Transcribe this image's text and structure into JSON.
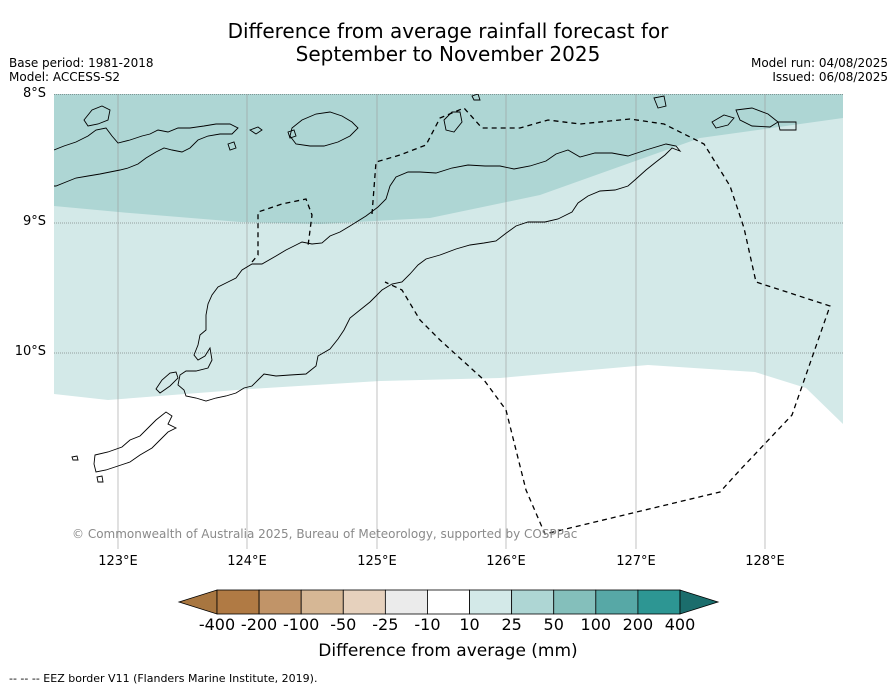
{
  "title": {
    "line1": "Difference from average rainfall forecast for",
    "line2": "September to November 2025"
  },
  "meta_left": {
    "base_period": "Base period: 1981-2018",
    "model": "Model: ACCESS-S2"
  },
  "meta_right": {
    "model_run": "Model run: 04/08/2025",
    "issued": "Issued: 06/08/2025"
  },
  "map": {
    "lat_labels": [
      "8°S",
      "9°S",
      "10°S"
    ],
    "lon_labels": [
      "123°E",
      "124°E",
      "125°E",
      "126°E",
      "127°E",
      "128°E"
    ],
    "copyright": "© Commonwealth of Australia 2025, Bureau of Meteorology, supported by COSPPac",
    "background_color": "#ffffff",
    "zone_colors": {
      "10_to_25": "#d3e9e8",
      "25_to_50": "#aed6d4"
    }
  },
  "colorbar": {
    "ticks": [
      "-400",
      "-200",
      "-100",
      "-50",
      "-25",
      "-10",
      "10",
      "25",
      "50",
      "100",
      "200",
      "400"
    ],
    "colors": [
      "#a87640",
      "#b07a44",
      "#c19468",
      "#d6b795",
      "#e6d1bd",
      "#ebebeb",
      "#ffffff",
      "#d3e9e8",
      "#aed6d4",
      "#84bfbb",
      "#57a8a6",
      "#2d9693",
      "#1b6d6c"
    ],
    "label": "Difference from average (mm)"
  },
  "footnote": "--  --  -- EEZ border V11 (Flanders Marine Institute, 2019)."
}
